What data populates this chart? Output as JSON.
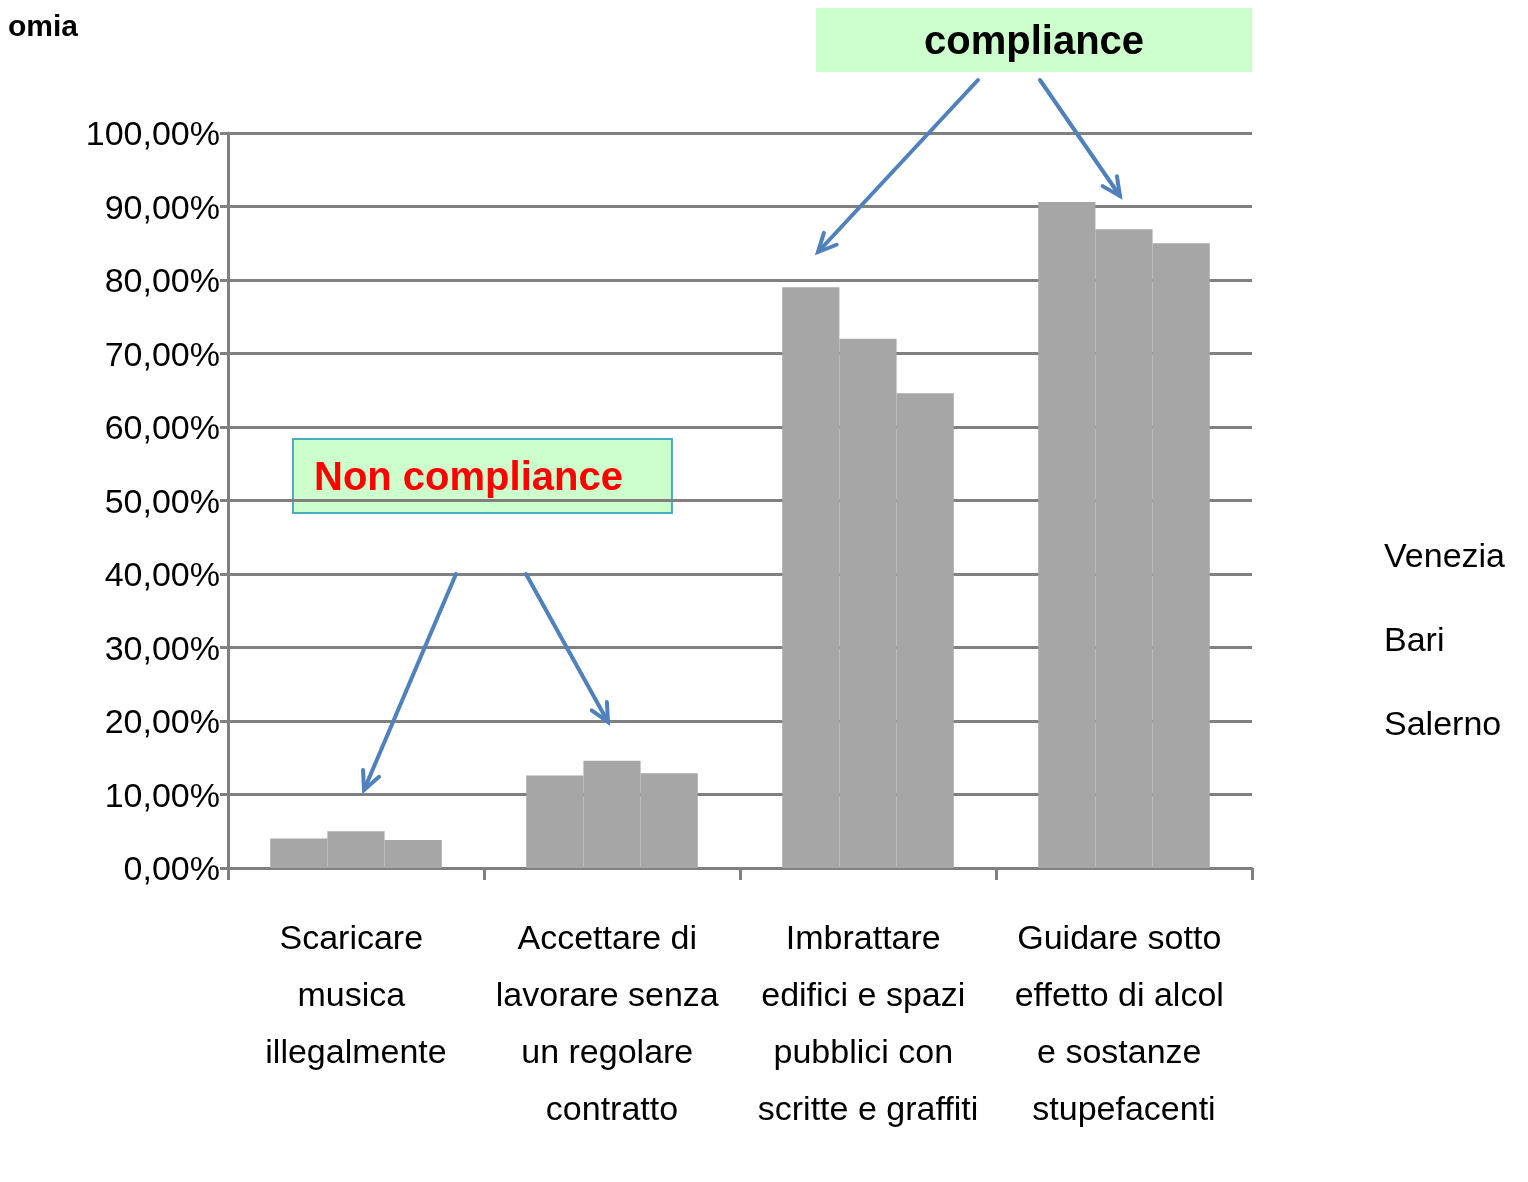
{
  "chart_data": {
    "type": "bar",
    "categories": [
      "Scaricare musica illegalmente",
      "Accettare di lavorare senza un regolare contratto",
      "Imbrattare edifici e spazi pubblici con scritte e graffiti",
      "Guidare sotto effetto di alcol e sostanze stupefacenti"
    ],
    "series": [
      {
        "name": "Venezia",
        "color": "#a6a6a6",
        "values": [
          4,
          12.6,
          79,
          90.6
        ]
      },
      {
        "name": "Bari",
        "color": "#a6a6a6",
        "values": [
          5,
          14.6,
          72,
          86.9
        ]
      },
      {
        "name": "Salerno",
        "color": "#a6a6a6",
        "values": [
          3.8,
          12.9,
          64.6,
          85
        ]
      }
    ],
    "ylim": [
      0,
      100
    ],
    "yticks": [
      {
        "value": 0,
        "label": "0,00%"
      },
      {
        "value": 10,
        "label": "10,00%"
      },
      {
        "value": 20,
        "label": "20,00%"
      },
      {
        "value": 30,
        "label": "30,00%"
      },
      {
        "value": 40,
        "label": "40,00%"
      },
      {
        "value": 50,
        "label": "50,00%"
      },
      {
        "value": 60,
        "label": "60,00%"
      },
      {
        "value": 70,
        "label": "70,00%"
      },
      {
        "value": 80,
        "label": "80,00%"
      },
      {
        "value": 90,
        "label": "90,00%"
      },
      {
        "value": 100,
        "label": "100,00%"
      }
    ],
    "grid": "y",
    "legend": "right",
    "annotations": [
      "compliance",
      "Non compliance",
      "omia"
    ]
  }
}
